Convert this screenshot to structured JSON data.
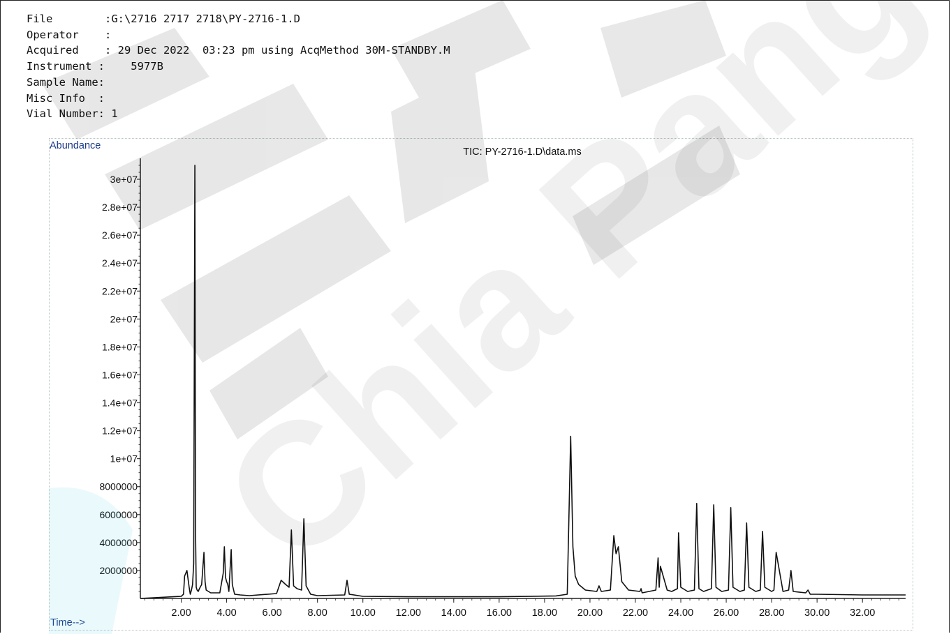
{
  "header": {
    "rows": [
      {
        "label": "File        ",
        "value": ":G:\\2716 2717 2718\\PY-2716-1.D"
      },
      {
        "label": "Operator    ",
        "value": ":"
      },
      {
        "label": "Acquired    ",
        "value": ": 29 Dec 2022  03:23 pm using AcqMethod 30M-STANDBY.M"
      },
      {
        "label": "Instrument :",
        "value": "    5977B"
      },
      {
        "label": "Sample Name:",
        "value": ""
      },
      {
        "label": "Misc Info  :",
        "value": ""
      },
      {
        "label": "Vial Number:",
        "value": " 1"
      }
    ]
  },
  "watermark": {
    "text": "Chia Pang"
  },
  "chart_data": {
    "type": "line",
    "title": "TIC: PY-2716-1.D\\data.ms",
    "ylabel": "Abundance",
    "xlabel": "Time-->",
    "xlim": [
      0.2,
      33.9
    ],
    "ylim": [
      0,
      31500000
    ],
    "x_ticks": [
      "2.00",
      "4.00",
      "6.00",
      "8.00",
      "10.00",
      "12.00",
      "14.00",
      "16.00",
      "18.00",
      "20.00",
      "22.00",
      "24.00",
      "26.00",
      "28.00",
      "30.00",
      "32.00"
    ],
    "x_tick_values": [
      2,
      4,
      6,
      8,
      10,
      12,
      14,
      16,
      18,
      20,
      22,
      24,
      26,
      28,
      30,
      32
    ],
    "y_ticks": [
      "2000000",
      "4000000",
      "6000000",
      "8000000",
      "1e+07",
      "1.2e+07",
      "1.4e+07",
      "1.6e+07",
      "1.8e+07",
      "2e+07",
      "2.2e+07",
      "2.4e+07",
      "2.6e+07",
      "2.8e+07",
      "3e+07"
    ],
    "y_tick_values": [
      2000000,
      4000000,
      6000000,
      8000000,
      10000000,
      12000000,
      14000000,
      16000000,
      18000000,
      20000000,
      22000000,
      24000000,
      26000000,
      28000000,
      30000000
    ],
    "series": [
      {
        "x": [
          0.2,
          2.0,
          2.1,
          2.15,
          2.25,
          2.35,
          2.4,
          2.45,
          2.5,
          2.55,
          2.6,
          2.63,
          2.66,
          2.7,
          2.75,
          2.8,
          2.9,
          3.0,
          3.05,
          3.1,
          3.3,
          3.7,
          3.85,
          3.9,
          3.95,
          4.0,
          4.05,
          4.1,
          4.2,
          4.25,
          4.35,
          4.6,
          5.0,
          6.2,
          6.4,
          6.6,
          6.75,
          6.85,
          6.95,
          7.1,
          7.3,
          7.4,
          7.5,
          7.7,
          8.0,
          9.2,
          9.3,
          9.4,
          10.0,
          12.0,
          16.0,
          18.5,
          19.0,
          19.15,
          19.25,
          19.35,
          19.5,
          19.8,
          20.3,
          20.4,
          20.5,
          20.9,
          21.05,
          21.15,
          21.25,
          21.4,
          21.7,
          22.2,
          22.25,
          22.3,
          22.9,
          23.0,
          23.05,
          23.1,
          23.4,
          23.6,
          23.85,
          23.9,
          24.0,
          24.3,
          24.6,
          24.7,
          24.8,
          25.0,
          25.35,
          25.45,
          25.55,
          25.8,
          26.1,
          26.2,
          26.3,
          26.6,
          26.8,
          26.9,
          27.0,
          27.3,
          27.5,
          27.6,
          27.7,
          28.0,
          28.1,
          28.2,
          28.5,
          28.75,
          28.85,
          28.95,
          29.5,
          29.6,
          29.7,
          30.0,
          32.0,
          33.9
        ],
        "y": [
          0,
          150000,
          300000,
          1600000,
          2000000,
          800000,
          300000,
          600000,
          1000000,
          2500000,
          31000000,
          5000000,
          800000,
          600000,
          500000,
          700000,
          1000000,
          3300000,
          1200000,
          600000,
          400000,
          400000,
          1800000,
          3700000,
          1500000,
          1200000,
          1000000,
          500000,
          3500000,
          1000000,
          300000,
          250000,
          200000,
          350000,
          1300000,
          1000000,
          800000,
          4900000,
          900000,
          700000,
          600000,
          5700000,
          900000,
          300000,
          200000,
          250000,
          1300000,
          300000,
          150000,
          120000,
          120000,
          180000,
          300000,
          11600000,
          3700000,
          1600000,
          1000000,
          600000,
          500000,
          900000,
          500000,
          600000,
          4500000,
          3200000,
          3700000,
          1200000,
          600000,
          500000,
          700000,
          400000,
          600000,
          2900000,
          800000,
          2300000,
          600000,
          500000,
          700000,
          4700000,
          800000,
          500000,
          600000,
          6800000,
          700000,
          500000,
          700000,
          6700000,
          800000,
          500000,
          600000,
          6500000,
          800000,
          500000,
          600000,
          5400000,
          800000,
          500000,
          600000,
          4800000,
          800000,
          500000,
          600000,
          3300000,
          500000,
          600000,
          2000000,
          500000,
          400000,
          600000,
          300000,
          300000,
          250000,
          250000
        ]
      }
    ]
  }
}
